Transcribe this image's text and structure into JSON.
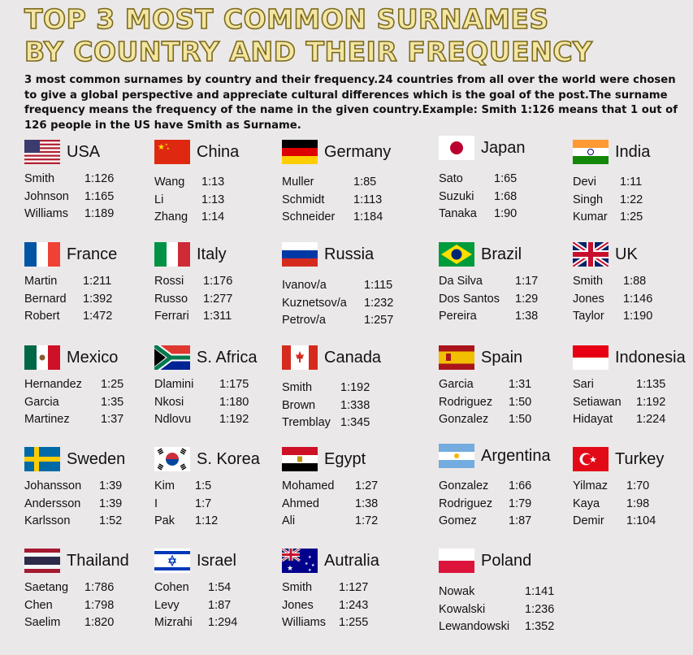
{
  "title": {
    "line1": "TOP 3 MOST COMMON SURNAMES",
    "line2": "BY COUNTRY AND THEIR FREQUENCY"
  },
  "intro": "3 most common surnames by country and their frequency.24 countries from all over the world were chosen to give a global perspective and appreciate cultural differences which is the goal of the post.The surname frequency means the frequency of the name in the given country.Example: Smith 1:126 means that 1 out of 126 people in the US have Smith as Surname.",
  "countries": [
    {
      "name": "USA",
      "flag": "usa-flag-icon",
      "surnames": [
        {
          "name": "Smith",
          "freq": "1:126"
        },
        {
          "name": "Johnson",
          "freq": "1:165"
        },
        {
          "name": "Williams",
          "freq": "1:189"
        }
      ]
    },
    {
      "name": "China",
      "flag": "china-flag-icon",
      "surnames": [
        {
          "name": "Wang",
          "freq": "1:13"
        },
        {
          "name": "Li",
          "freq": "1:13"
        },
        {
          "name": "Zhang",
          "freq": "1:14"
        }
      ]
    },
    {
      "name": "Germany",
      "flag": "germany-flag-icon",
      "surnames": [
        {
          "name": "Muller",
          "freq": "1:85"
        },
        {
          "name": "Schmidt",
          "freq": "1:113"
        },
        {
          "name": "Schneider",
          "freq": "1:184"
        }
      ]
    },
    {
      "name": "Japan",
      "flag": "japan-flag-icon",
      "surnames": [
        {
          "name": "Sato",
          "freq": "1:65"
        },
        {
          "name": "Suzuki",
          "freq": "1:68"
        },
        {
          "name": "Tanaka",
          "freq": "1:90"
        }
      ]
    },
    {
      "name": "India",
      "flag": "india-flag-icon",
      "surnames": [
        {
          "name": "Devi",
          "freq": "1:11"
        },
        {
          "name": "Singh",
          "freq": "1:22"
        },
        {
          "name": "Kumar",
          "freq": "1:25"
        }
      ]
    },
    {
      "name": "France",
      "flag": "france-flag-icon",
      "surnames": [
        {
          "name": "Martin",
          "freq": "1:211"
        },
        {
          "name": "Bernard",
          "freq": "1:392"
        },
        {
          "name": "Robert",
          "freq": "1:472"
        }
      ]
    },
    {
      "name": "Italy",
      "flag": "italy-flag-icon",
      "surnames": [
        {
          "name": "Rossi",
          "freq": "1:176"
        },
        {
          "name": "Russo",
          "freq": "1:277"
        },
        {
          "name": "Ferrari",
          "freq": "1:311"
        }
      ]
    },
    {
      "name": "Russia",
      "flag": "russia-flag-icon",
      "surnames": [
        {
          "name": "Ivanov/a",
          "freq": "1:115"
        },
        {
          "name": "Kuznetsov/a",
          "freq": "1:232"
        },
        {
          "name": "Petrov/a",
          "freq": "1:257"
        }
      ]
    },
    {
      "name": "Brazil",
      "flag": "brazil-flag-icon",
      "surnames": [
        {
          "name": "Da Silva",
          "freq": "1:17"
        },
        {
          "name": "Dos Santos",
          "freq": "1:29"
        },
        {
          "name": "Pereira",
          "freq": "1:38"
        }
      ]
    },
    {
      "name": "UK",
      "flag": "uk-flag-icon",
      "surnames": [
        {
          "name": "Smith",
          "freq": "1:88"
        },
        {
          "name": "Jones",
          "freq": "1:146"
        },
        {
          "name": "Taylor",
          "freq": "1:190"
        }
      ]
    },
    {
      "name": "Mexico",
      "flag": "mexico-flag-icon",
      "surnames": [
        {
          "name": "Hernandez",
          "freq": "1:25"
        },
        {
          "name": "Garcia",
          "freq": "1:35"
        },
        {
          "name": "Martinez",
          "freq": "1:37"
        }
      ]
    },
    {
      "name": "S. Africa",
      "flag": "south-africa-flag-icon",
      "surnames": [
        {
          "name": "Dlamini",
          "freq": "1:175"
        },
        {
          "name": "Nkosi",
          "freq": "1:180"
        },
        {
          "name": "Ndlovu",
          "freq": "1:192"
        }
      ]
    },
    {
      "name": "Canada",
      "flag": "canada-flag-icon",
      "surnames": [
        {
          "name": "Smith",
          "freq": "1:192"
        },
        {
          "name": "Brown",
          "freq": "1:338"
        },
        {
          "name": "Tremblay",
          "freq": "1:345"
        }
      ]
    },
    {
      "name": "Spain",
      "flag": "spain-flag-icon",
      "surnames": [
        {
          "name": "Garcia",
          "freq": "1:31"
        },
        {
          "name": "Rodriguez",
          "freq": "1:50"
        },
        {
          "name": "Gonzalez",
          "freq": "1:50"
        }
      ]
    },
    {
      "name": "Indonesia",
      "flag": "indonesia-flag-icon",
      "surnames": [
        {
          "name": "Sari",
          "freq": "1:135"
        },
        {
          "name": "Setiawan",
          "freq": "1:192"
        },
        {
          "name": "Hidayat",
          "freq": "1:224"
        }
      ]
    },
    {
      "name": "Sweden",
      "flag": "sweden-flag-icon",
      "surnames": [
        {
          "name": "Johansson",
          "freq": "1:39"
        },
        {
          "name": "Andersson",
          "freq": "1:39"
        },
        {
          "name": "Karlsson",
          "freq": "1:52"
        }
      ]
    },
    {
      "name": "S. Korea",
      "flag": "south-korea-flag-icon",
      "surnames": [
        {
          "name": "Kim",
          "freq": "1:5"
        },
        {
          "name": "I",
          "freq": "1:7"
        },
        {
          "name": "Pak",
          "freq": "1:12"
        }
      ]
    },
    {
      "name": "Egypt",
      "flag": "egypt-flag-icon",
      "surnames": [
        {
          "name": "Mohamed",
          "freq": "1:27"
        },
        {
          "name": "Ahmed",
          "freq": "1:38"
        },
        {
          "name": "Ali",
          "freq": "1:72"
        }
      ]
    },
    {
      "name": "Argentina",
      "flag": "argentina-flag-icon",
      "surnames": [
        {
          "name": "Gonzalez",
          "freq": "1:66"
        },
        {
          "name": "Rodriguez",
          "freq": "1:79"
        },
        {
          "name": "Gomez",
          "freq": "1:87"
        }
      ]
    },
    {
      "name": "Turkey",
      "flag": "turkey-flag-icon",
      "surnames": [
        {
          "name": "Yilmaz",
          "freq": "1:70"
        },
        {
          "name": "Kaya",
          "freq": "1:98"
        },
        {
          "name": "Demir",
          "freq": "1:104"
        }
      ]
    },
    {
      "name": "Thailand",
      "flag": "thailand-flag-icon",
      "surnames": [
        {
          "name": "Saetang",
          "freq": "1:786"
        },
        {
          "name": "Chen",
          "freq": "1:798"
        },
        {
          "name": "Saelim",
          "freq": "1:820"
        }
      ]
    },
    {
      "name": "Israel",
      "flag": "israel-flag-icon",
      "surnames": [
        {
          "name": "Cohen",
          "freq": "1:54"
        },
        {
          "name": "Levy",
          "freq": "1:87"
        },
        {
          "name": "Mizrahi",
          "freq": "1:294"
        }
      ]
    },
    {
      "name": "Autralia",
      "flag": "australia-flag-icon",
      "surnames": [
        {
          "name": "Smith",
          "freq": "1:127"
        },
        {
          "name": "Jones",
          "freq": "1:243"
        },
        {
          "name": "Williams",
          "freq": "1:255"
        }
      ]
    },
    {
      "name": "Poland",
      "flag": "poland-flag-icon",
      "surnames": [
        {
          "name": "Nowak",
          "freq": "1:141"
        },
        {
          "name": "Kowalski",
          "freq": "1:236"
        },
        {
          "name": "Lewandowski",
          "freq": "1:352"
        }
      ]
    }
  ]
}
